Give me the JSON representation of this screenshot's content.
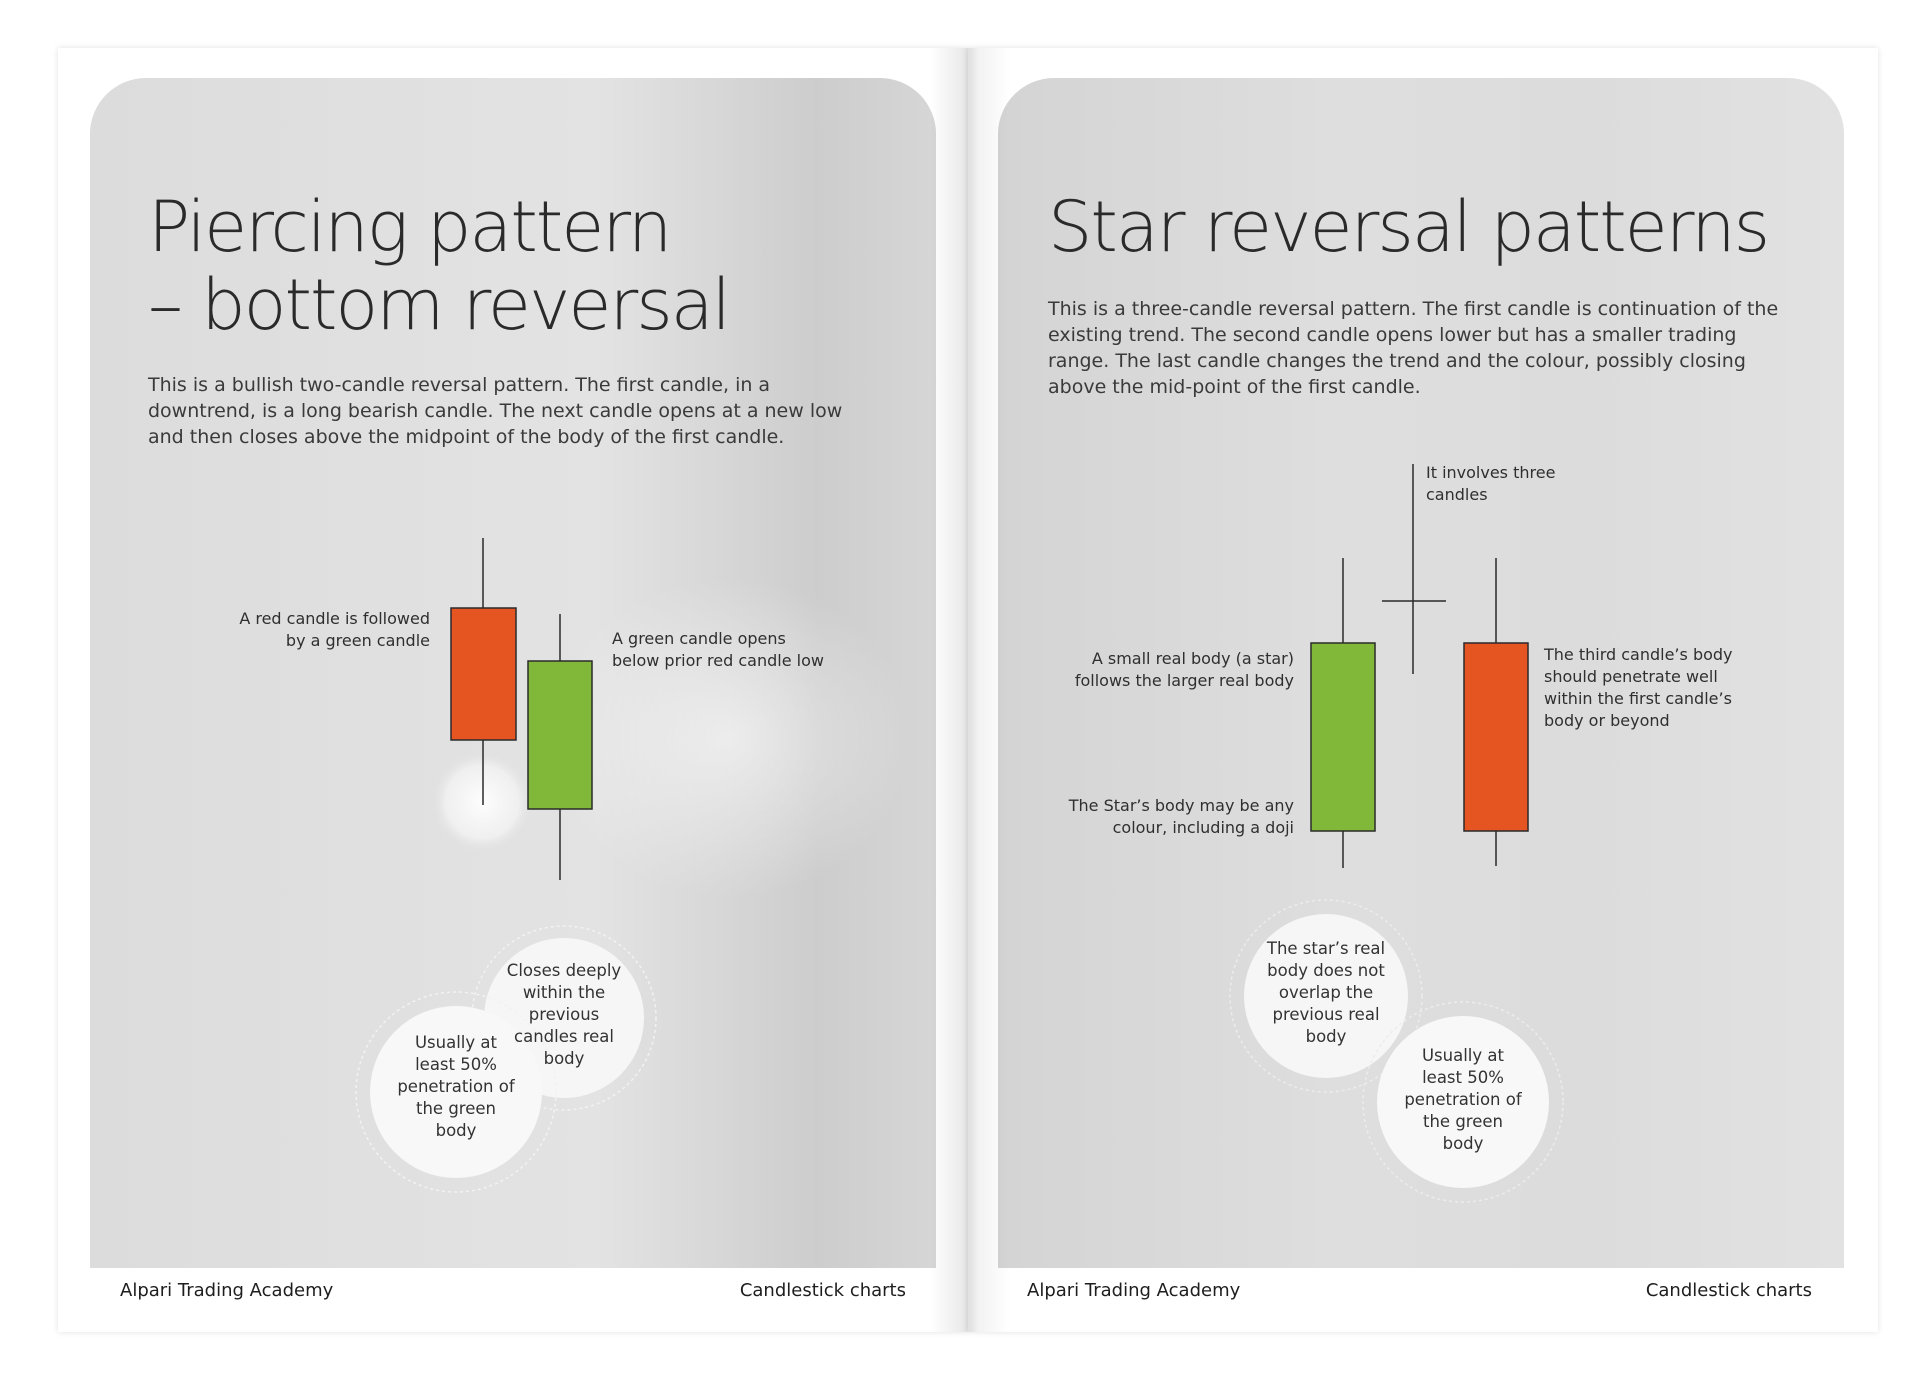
{
  "left_page": {
    "title": "Piercing pattern\n– bottom reversal",
    "intro": "This is a bullish two-candle reversal pattern. The first candle, in a downtrend, is a long bearish candle. The next candle opens at a new low and then closes above the midpoint of the body of the first candle.",
    "label_red": "A red candle is followed by a green candle",
    "label_green": "A green candle opens below prior red candle low",
    "bubble_1": "Closes deeply within the previous candles real body",
    "bubble_2": "Usually at least 50% penetration of the green body",
    "footer_left": "Alpari Trading Academy",
    "footer_right": "Candlestick charts"
  },
  "right_page": {
    "title": "Star reversal patterns",
    "intro": "This is a three-candle reversal pattern. The first candle is continuation of the existing trend. The second candle opens lower but has a smaller trading range. The last candle changes the trend and the colour, possibly closing above the mid-point of the first candle.",
    "label_three": "It involves three candles",
    "label_small_body": "A small real body (a star) follows the larger real body",
    "label_star_colour": "The Star’s body may be any colour, including a doji",
    "label_third": "The third candle’s body should penetrate well within the first candle’s body or beyond",
    "bubble_1": "The star’s real body does not overlap the previous real body",
    "bubble_2": "Usually at least 50% penetration of the green body",
    "footer_left": "Alpari Trading Academy",
    "footer_right": "Candlestick charts"
  },
  "colors": {
    "red_candle": "#e55522",
    "green_candle": "#82b83a",
    "outline": "#2a2a2a"
  }
}
